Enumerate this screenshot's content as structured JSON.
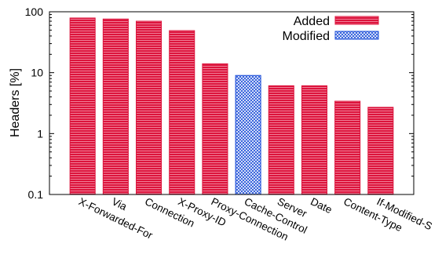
{
  "chart_data": {
    "type": "bar",
    "title": "",
    "xlabel": "",
    "ylabel": "Headers [%]",
    "yscale": "log",
    "ylim": [
      0.1,
      100
    ],
    "yticks": [
      {
        "value": 0.1,
        "label": "0.1"
      },
      {
        "value": 1,
        "label": "1"
      },
      {
        "value": 10,
        "label": "10"
      },
      {
        "value": 100,
        "label": "100"
      }
    ],
    "grid": false,
    "legend_position": "top-right",
    "categories": [
      "X-Forwarded-For",
      "Via",
      "Connection",
      "X-Proxy-ID",
      "Proxy-Connection",
      "Cache-Control",
      "Server",
      "Date",
      "Content-Type",
      "If-Modified-S"
    ],
    "values": [
      79,
      76,
      70,
      49,
      14,
      9,
      6.1,
      6.1,
      3.4,
      2.7
    ],
    "kinds": [
      "added",
      "added",
      "added",
      "added",
      "added",
      "modified",
      "added",
      "added",
      "added",
      "added"
    ],
    "series": [
      {
        "name": "Added",
        "key": "added",
        "color": "#dc143c",
        "pattern": "stripes"
      },
      {
        "name": "Modified",
        "key": "modified",
        "color": "#1e4fd8",
        "pattern": "crosshatch"
      }
    ]
  }
}
